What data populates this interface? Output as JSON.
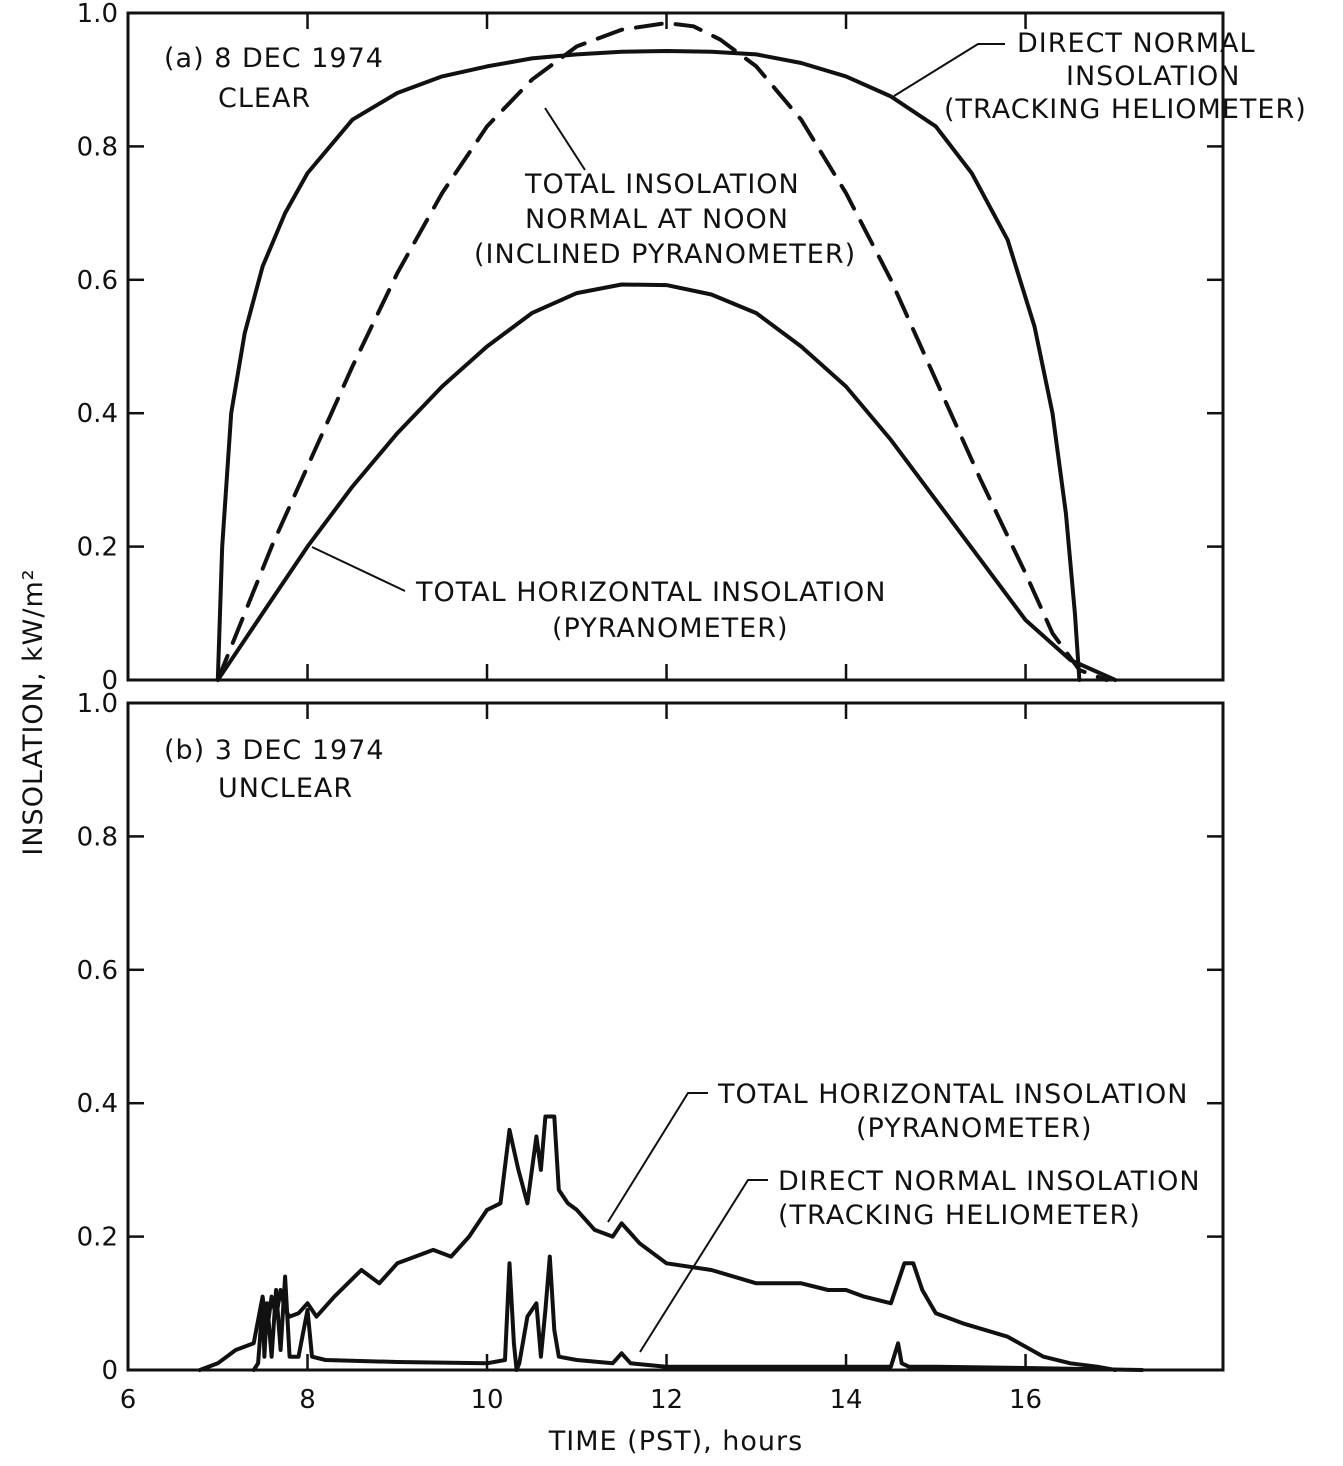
{
  "figure": {
    "ylabel": "INSOLATION, kW/m²",
    "xlabel": "TIME (PST), hours",
    "colors": {
      "ink": "#111111",
      "background": "#ffffff"
    }
  },
  "chart_data": [
    {
      "type": "line",
      "panel": "a",
      "annotation": [
        "(a)  8 DEC 1974",
        "CLEAR"
      ],
      "xlim": [
        6,
        18.2
      ],
      "ylim": [
        0,
        1.0
      ],
      "x_ticks": [
        6,
        8,
        10,
        12,
        14,
        16
      ],
      "y_ticks": [
        0,
        0.2,
        0.4,
        0.6,
        0.8,
        1.0
      ],
      "y_tick_labels": [
        "0",
        "0.2",
        "0.4",
        "0.6",
        "0.8",
        "1.0"
      ],
      "series": [
        {
          "name": [
            "DIRECT NORMAL",
            "INSOLATION",
            "(TRACKING HELIOMETER)"
          ],
          "style": "solid",
          "x": [
            7.0,
            7.05,
            7.15,
            7.3,
            7.5,
            7.75,
            8.0,
            8.5,
            9.0,
            9.5,
            10.0,
            10.5,
            11.0,
            11.5,
            12.0,
            12.5,
            13.0,
            13.5,
            14.0,
            14.5,
            15.0,
            15.4,
            15.8,
            16.1,
            16.3,
            16.45,
            16.55,
            16.6
          ],
          "y": [
            0.0,
            0.2,
            0.4,
            0.52,
            0.62,
            0.7,
            0.76,
            0.84,
            0.88,
            0.905,
            0.92,
            0.932,
            0.938,
            0.942,
            0.943,
            0.942,
            0.938,
            0.925,
            0.905,
            0.875,
            0.83,
            0.76,
            0.66,
            0.53,
            0.4,
            0.25,
            0.1,
            0.0
          ]
        },
        {
          "name": [
            "TOTAL INSOLATION",
            "NORMAL AT NOON",
            "(INCLINED PYRANOMETER)"
          ],
          "style": "dashed",
          "x": [
            7.0,
            7.3,
            7.6,
            8.0,
            8.5,
            9.0,
            9.5,
            10.0,
            10.5,
            11.0,
            11.5,
            12.0,
            12.3,
            12.6,
            13.0,
            13.5,
            14.0,
            14.5,
            15.0,
            15.5,
            16.0,
            16.3,
            16.6,
            16.9
          ],
          "y": [
            0.0,
            0.1,
            0.2,
            0.32,
            0.47,
            0.61,
            0.73,
            0.83,
            0.9,
            0.95,
            0.975,
            0.985,
            0.98,
            0.96,
            0.92,
            0.84,
            0.73,
            0.6,
            0.45,
            0.3,
            0.16,
            0.07,
            0.015,
            0.0
          ]
        },
        {
          "name": [
            "TOTAL HORIZONTAL INSOLATION",
            "(PYRANOMETER)"
          ],
          "style": "solid",
          "x": [
            7.0,
            7.5,
            8.0,
            8.5,
            9.0,
            9.5,
            10.0,
            10.5,
            11.0,
            11.5,
            12.0,
            12.5,
            13.0,
            13.5,
            14.0,
            14.5,
            15.0,
            15.5,
            16.0,
            16.5,
            17.0
          ],
          "y": [
            0.0,
            0.1,
            0.2,
            0.29,
            0.37,
            0.44,
            0.5,
            0.55,
            0.58,
            0.593,
            0.592,
            0.578,
            0.55,
            0.5,
            0.44,
            0.36,
            0.27,
            0.18,
            0.09,
            0.03,
            0.0
          ]
        }
      ]
    },
    {
      "type": "line",
      "panel": "b",
      "annotation": [
        "(b)  3 DEC 1974",
        "UNCLEAR"
      ],
      "xlim": [
        6,
        18.2
      ],
      "ylim": [
        0,
        1.0
      ],
      "x_ticks": [
        6,
        8,
        10,
        12,
        14,
        16
      ],
      "x_tick_labels": [
        "6",
        "8",
        "10",
        "12",
        "14",
        "16"
      ],
      "y_ticks": [
        0,
        0.2,
        0.4,
        0.6,
        0.8,
        1.0
      ],
      "y_tick_labels": [
        "0",
        "0.2",
        "0.4",
        "0.6",
        "0.8",
        "1.0"
      ],
      "series": [
        {
          "name": [
            "TOTAL HORIZONTAL INSOLATION",
            "(PYRANOMETER)"
          ],
          "style": "solid",
          "x": [
            6.8,
            7.0,
            7.2,
            7.4,
            7.5,
            7.55,
            7.6,
            7.65,
            7.7,
            7.75,
            7.8,
            7.9,
            8.0,
            8.1,
            8.3,
            8.6,
            8.8,
            9.0,
            9.2,
            9.4,
            9.6,
            9.8,
            10.0,
            10.15,
            10.25,
            10.3,
            10.35,
            10.45,
            10.55,
            10.6,
            10.65,
            10.75,
            10.8,
            10.9,
            11.0,
            11.2,
            11.4,
            11.5,
            11.7,
            12.0,
            12.5,
            13.0,
            13.5,
            13.8,
            14.0,
            14.2,
            14.5,
            14.65,
            14.75,
            14.85,
            15.0,
            15.3,
            15.8,
            16.2,
            16.5,
            16.8,
            17.0
          ],
          "y": [
            0.0,
            0.01,
            0.03,
            0.04,
            0.11,
            0.06,
            0.11,
            0.08,
            0.12,
            0.09,
            0.08,
            0.085,
            0.1,
            0.08,
            0.11,
            0.15,
            0.13,
            0.16,
            0.17,
            0.18,
            0.17,
            0.2,
            0.24,
            0.25,
            0.36,
            0.33,
            0.3,
            0.25,
            0.35,
            0.3,
            0.38,
            0.38,
            0.27,
            0.25,
            0.24,
            0.21,
            0.2,
            0.22,
            0.19,
            0.16,
            0.15,
            0.13,
            0.13,
            0.12,
            0.12,
            0.11,
            0.1,
            0.16,
            0.16,
            0.12,
            0.085,
            0.07,
            0.05,
            0.02,
            0.01,
            0.005,
            0.0
          ]
        },
        {
          "name": [
            "DIRECT NORMAL INSOLATION",
            "(TRACKING HELIOMETER)"
          ],
          "style": "solid",
          "x": [
            7.4,
            7.45,
            7.5,
            7.52,
            7.55,
            7.6,
            7.65,
            7.7,
            7.75,
            7.8,
            7.9,
            8.0,
            8.05,
            8.2,
            9.0,
            10.0,
            10.2,
            10.25,
            10.3,
            10.33,
            10.36,
            10.45,
            10.55,
            10.6,
            10.65,
            10.7,
            10.75,
            10.8,
            11.0,
            11.4,
            11.5,
            11.6,
            12.0,
            14.0,
            14.5,
            14.58,
            14.62,
            14.7,
            15.0,
            16.0,
            17.3
          ],
          "y": [
            0.0,
            0.01,
            0.1,
            0.02,
            0.1,
            0.02,
            0.12,
            0.03,
            0.14,
            0.02,
            0.02,
            0.09,
            0.02,
            0.015,
            0.012,
            0.01,
            0.015,
            0.16,
            0.04,
            0.0,
            0.01,
            0.08,
            0.1,
            0.02,
            0.09,
            0.17,
            0.06,
            0.02,
            0.015,
            0.01,
            0.025,
            0.01,
            0.005,
            0.005,
            0.005,
            0.04,
            0.01,
            0.005,
            0.005,
            0.003,
            0.0
          ]
        }
      ]
    }
  ]
}
